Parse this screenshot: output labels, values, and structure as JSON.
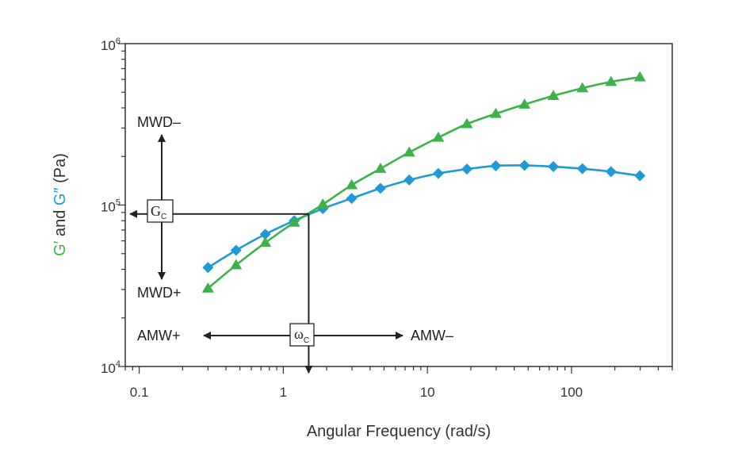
{
  "chart_data": {
    "type": "line",
    "xscale": "log",
    "yscale": "log",
    "xlim": [
      0.08,
      500
    ],
    "ylim": [
      10000,
      1000000
    ],
    "grid": false,
    "xlabel": "Angular Frequency (rad/s)",
    "ylabel": {
      "part1": "G′",
      "part2": " and ",
      "part3": "G″",
      "part4": " (Pa)"
    },
    "x_tick_labels": [
      "0.1",
      "1",
      "10",
      "100"
    ],
    "x_major_ticks": [
      0.1,
      1,
      10,
      100
    ],
    "y_major_ticks": [
      {
        "value": 10000,
        "base": "10",
        "exp": "4"
      },
      {
        "value": 100000,
        "base": "10",
        "exp": "5"
      },
      {
        "value": 1000000,
        "base": "10",
        "exp": "6"
      }
    ],
    "colors": {
      "storage": "#3cb34a",
      "loss": "#1f9ad6",
      "axis": "#333333",
      "annotation": "#222222"
    },
    "series": [
      {
        "key": "storage",
        "marker": "triangle",
        "color": "#3cb34a",
        "x": [
          0.3,
          0.47,
          0.75,
          1.19,
          1.88,
          2.98,
          4.72,
          7.48,
          11.9,
          18.8,
          29.8,
          47.2,
          74.8,
          119,
          188,
          298
        ],
        "y": [
          30500,
          42500,
          58500,
          78000,
          101000,
          133000,
          168000,
          212000,
          262000,
          318000,
          368000,
          420000,
          475000,
          530000,
          580000,
          620000
        ]
      },
      {
        "key": "loss",
        "marker": "diamond",
        "color": "#1f9ad6",
        "x": [
          0.3,
          0.47,
          0.75,
          1.19,
          1.88,
          2.98,
          4.72,
          7.48,
          11.9,
          18.8,
          29.8,
          47.2,
          74.8,
          119,
          188,
          298
        ],
        "y": [
          41000,
          52500,
          66000,
          80000,
          95000,
          110000,
          127000,
          143000,
          157000,
          167000,
          175000,
          176000,
          173000,
          168000,
          161000,
          152000
        ]
      }
    ],
    "crossover": {
      "omega": 1.5,
      "modulus": 88000
    },
    "annotations": {
      "gc_main": "G",
      "gc_sub": "C",
      "wc_main": "ω",
      "wc_sub": "C",
      "mwd_minus": "MWD–",
      "mwd_plus": "MWD+",
      "amw_plus": "AMW+",
      "amw_minus": "AMW–"
    }
  }
}
